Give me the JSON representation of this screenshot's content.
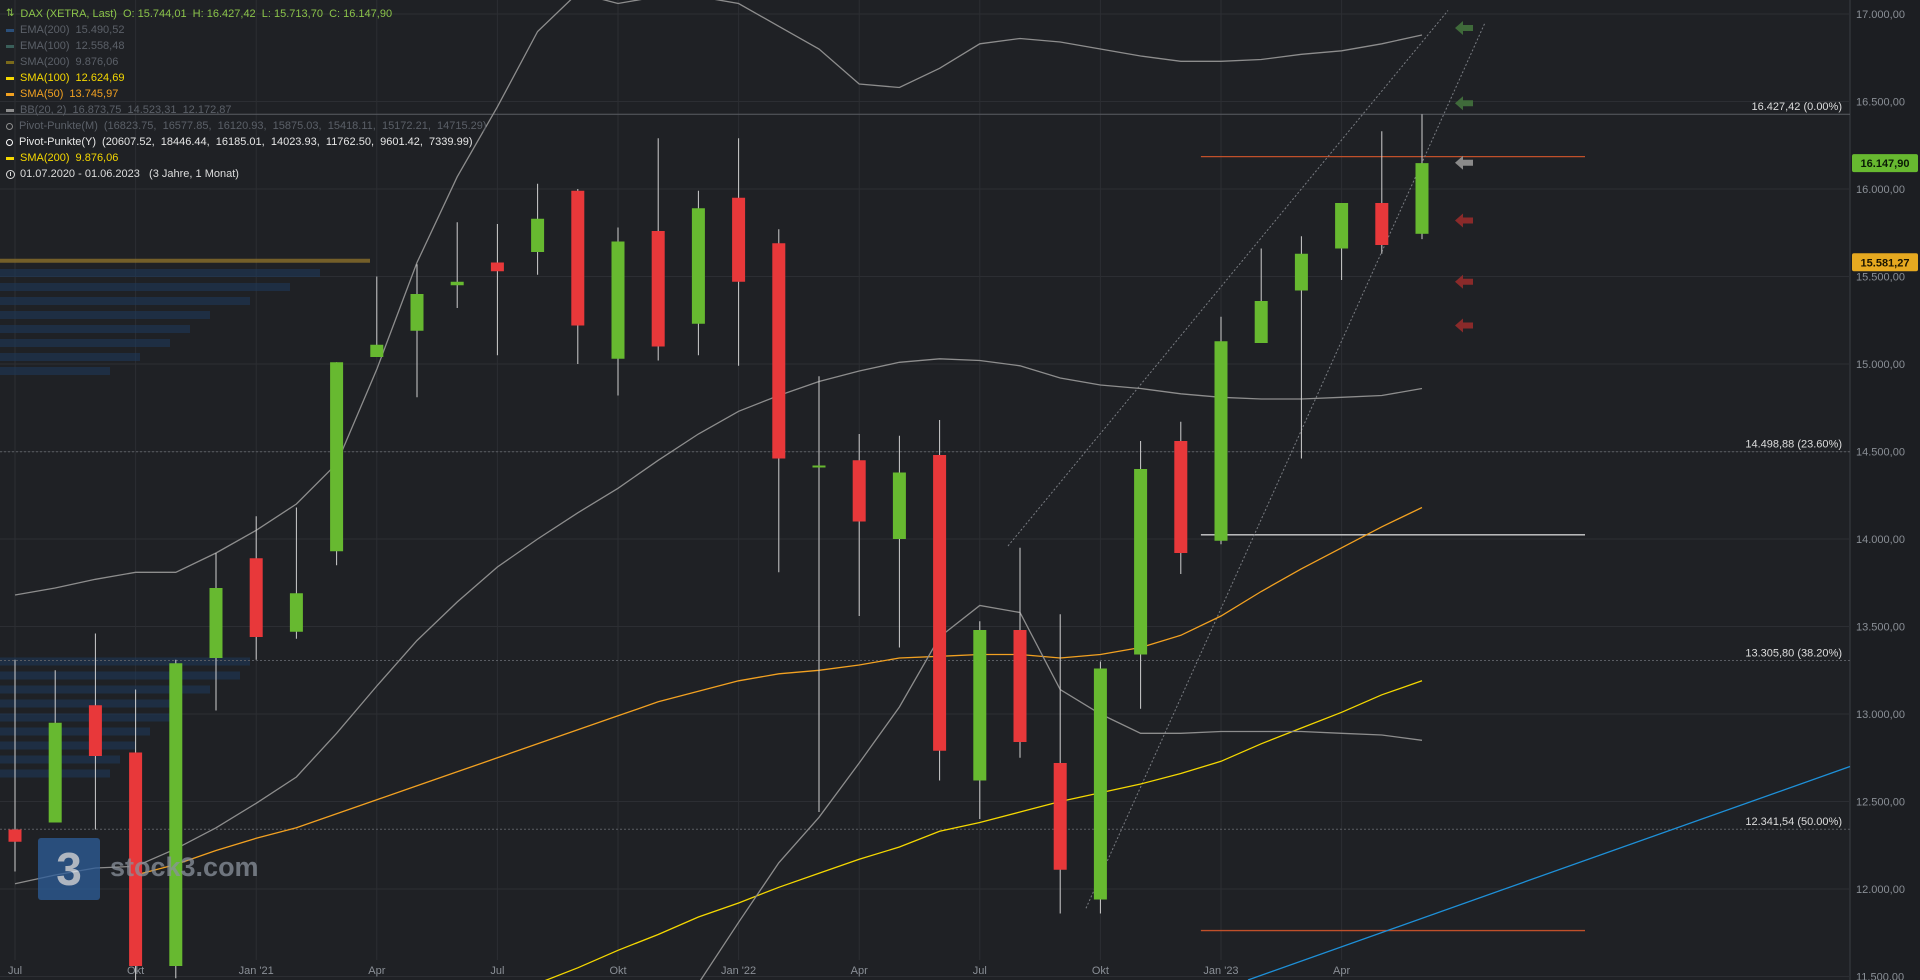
{
  "header": {
    "title": "DAX (XETRA, Last)",
    "ohlc": "O: 15.744,01  H: 16.427,42  L: 15.713,70  C: 16.147,90"
  },
  "legend": [
    {
      "name": "EMA(200)",
      "value": "15.490,52",
      "color": "#2b4f7a",
      "dim": true
    },
    {
      "name": "EMA(100)",
      "value": "12.558,48",
      "color": "#3a5f5a",
      "dim": true
    },
    {
      "name": "SMA(200)",
      "value": "9.876,06",
      "color": "#7a6a1a",
      "dim": true
    },
    {
      "name": "SMA(100)",
      "value": "12.624,69",
      "color": "#f5d800",
      "dim": false
    },
    {
      "name": "SMA(50)",
      "value": "13.745,97",
      "color": "#f2a121",
      "dim": false
    },
    {
      "name": "BB(20, 2)",
      "value": "16.873,75  14.523,31  12.172,87",
      "color": "#8d8d8d",
      "dim": true
    },
    {
      "name": "Pivot-Punkte(M)",
      "value": "(16823.75,  16577.85,  16120.93,  15875.03,  15418.11,  15172.21,  14715.29)",
      "color": "#8d8d8d",
      "dim": true,
      "circle": true
    },
    {
      "name": "Pivot-Punkte(Y)",
      "value": "(20607.52,  18446.44,  16185.01,  14023.93,  11762.50,  9601.42,  7339.99)",
      "color": "#ffffff",
      "dim": false,
      "circle": true
    },
    {
      "name": "SMA(200)",
      "value": "9.876,06",
      "color": "#f5d800",
      "dim": false
    }
  ],
  "range_text": "01.07.2020 - 01.06.2023   (3 Jahre, 1 Monat)",
  "logo": {
    "glyph": "3",
    "text": "stock3.com"
  },
  "colors": {
    "background": "#1f2125",
    "up": "#67b930",
    "down": "#e8383a",
    "grid": "#2c2e33",
    "axis_text": "#8a8f96"
  },
  "chart_data": {
    "type": "candlestick",
    "x_tick_labels": [
      "Jul",
      "Okt",
      "Jan '21",
      "Apr",
      "Jul",
      "Okt",
      "Jan '22",
      "Apr",
      "Jul",
      "Okt",
      "Jan '23",
      "Apr"
    ],
    "y_tick_labels": [
      "11.500,00",
      "12.000,00",
      "12.500,00",
      "13.000,00",
      "13.500,00",
      "14.000,00",
      "14.500,00",
      "15.000,00",
      "15.500,00",
      "16.000,00",
      "16.500,00",
      "17.000,00"
    ],
    "ylim": [
      11480,
      17080
    ],
    "candles": [
      {
        "date": "2020-07",
        "o": 12340,
        "h": 13310,
        "l": 12100,
        "c": 12270
      },
      {
        "date": "2020-08",
        "o": 12380,
        "h": 13250,
        "l": 12380,
        "c": 12950
      },
      {
        "date": "2020-09",
        "o": 13050,
        "h": 13460,
        "l": 12340,
        "c": 12760
      },
      {
        "date": "2020-10",
        "o": 12780,
        "h": 13140,
        "l": 11450,
        "c": 11560
      },
      {
        "date": "2020-11",
        "o": 11560,
        "h": 13310,
        "l": 11490,
        "c": 13290
      },
      {
        "date": "2020-12",
        "o": 13320,
        "h": 13920,
        "l": 13020,
        "c": 13720
      },
      {
        "date": "2021-01",
        "o": 13890,
        "h": 14130,
        "l": 13310,
        "c": 13440
      },
      {
        "date": "2021-02",
        "o": 13470,
        "h": 14180,
        "l": 13430,
        "c": 13690
      },
      {
        "date": "2021-03",
        "o": 13930,
        "h": 15010,
        "l": 13850,
        "c": 15010
      },
      {
        "date": "2021-04",
        "o": 15040,
        "h": 15500,
        "l": 15040,
        "c": 15110
      },
      {
        "date": "2021-05",
        "o": 15190,
        "h": 15570,
        "l": 14810,
        "c": 15400
      },
      {
        "date": "2021-06",
        "o": 15450,
        "h": 15810,
        "l": 15320,
        "c": 15470
      },
      {
        "date": "2021-07",
        "o": 15580,
        "h": 15800,
        "l": 15050,
        "c": 15530
      },
      {
        "date": "2021-08",
        "o": 15640,
        "h": 16030,
        "l": 15510,
        "c": 15830
      },
      {
        "date": "2021-09",
        "o": 15990,
        "h": 16000,
        "l": 15000,
        "c": 15220
      },
      {
        "date": "2021-10",
        "o": 15030,
        "h": 15780,
        "l": 14820,
        "c": 15700
      },
      {
        "date": "2021-11",
        "o": 15760,
        "h": 16290,
        "l": 15020,
        "c": 15100
      },
      {
        "date": "2021-12",
        "o": 15230,
        "h": 15990,
        "l": 15050,
        "c": 15890
      },
      {
        "date": "2022-01",
        "o": 15950,
        "h": 16290,
        "l": 14990,
        "c": 15470
      },
      {
        "date": "2022-02",
        "o": 15690,
        "h": 15770,
        "l": 13810,
        "c": 14460
      },
      {
        "date": "2022-03",
        "o": 14410,
        "h": 14930,
        "l": 12440,
        "c": 14420
      },
      {
        "date": "2022-04",
        "o": 14450,
        "h": 14600,
        "l": 13560,
        "c": 14100
      },
      {
        "date": "2022-05",
        "o": 14000,
        "h": 14590,
        "l": 13380,
        "c": 14380
      },
      {
        "date": "2022-06",
        "o": 14480,
        "h": 14680,
        "l": 12620,
        "c": 12790
      },
      {
        "date": "2022-07",
        "o": 12620,
        "h": 13530,
        "l": 12400,
        "c": 13480
      },
      {
        "date": "2022-08",
        "o": 13480,
        "h": 13950,
        "l": 12750,
        "c": 12840
      },
      {
        "date": "2022-09",
        "o": 12720,
        "h": 13570,
        "l": 11860,
        "c": 12110
      },
      {
        "date": "2022-10",
        "o": 11940,
        "h": 13300,
        "l": 11860,
        "c": 13260
      },
      {
        "date": "2022-11",
        "o": 13340,
        "h": 14560,
        "l": 13030,
        "c": 14400
      },
      {
        "date": "2022-12",
        "o": 14560,
        "h": 14670,
        "l": 13800,
        "c": 13920
      },
      {
        "date": "2023-01",
        "o": 13990,
        "h": 15270,
        "l": 13970,
        "c": 15130
      },
      {
        "date": "2023-02",
        "o": 15120,
        "h": 15660,
        "l": 15120,
        "c": 15360
      },
      {
        "date": "2023-03",
        "o": 15420,
        "h": 15730,
        "l": 14460,
        "c": 15630
      },
      {
        "date": "2023-04",
        "o": 15660,
        "h": 15920,
        "l": 15480,
        "c": 15920
      },
      {
        "date": "2023-05",
        "o": 15920,
        "h": 16330,
        "l": 15630,
        "c": 15680
      },
      {
        "date": "2023-06",
        "o": 15744.01,
        "h": 16427.42,
        "l": 15713.7,
        "c": 16147.9
      }
    ],
    "indicators": [
      {
        "name": "SMA(50)",
        "color": "#f2a121",
        "values": [
          null,
          null,
          null,
          12080,
          12140,
          12220,
          12290,
          12350,
          12430,
          12510,
          12590,
          12670,
          12750,
          12830,
          12910,
          12990,
          13070,
          13130,
          13190,
          13230,
          13250,
          13280,
          13320,
          13330,
          13340,
          13340,
          13320,
          13340,
          13380,
          13450,
          13560,
          13700,
          13830,
          13950,
          14070,
          14180
        ]
      },
      {
        "name": "SMA(100)",
        "color": "#f5d800",
        "values": [
          null,
          null,
          null,
          null,
          null,
          null,
          null,
          null,
          null,
          null,
          null,
          null,
          null,
          11460,
          11550,
          11650,
          11740,
          11840,
          11920,
          12010,
          12090,
          12170,
          12240,
          12330,
          12380,
          12440,
          12500,
          12550,
          12600,
          12660,
          12730,
          12830,
          12920,
          13010,
          13110,
          13190
        ]
      },
      {
        "name": "BB upper",
        "color": "#8d8d8d",
        "values": [
          13680,
          13720,
          13770,
          13810,
          13810,
          13920,
          14050,
          14200,
          14430,
          14970,
          15580,
          16070,
          16470,
          16900,
          17120,
          17060,
          17100,
          17100,
          17060,
          16930,
          16800,
          16600,
          16580,
          16690,
          16830,
          16860,
          16840,
          16800,
          16760,
          16730,
          16730,
          16740,
          16770,
          16790,
          16830,
          16880
        ]
      },
      {
        "name": "BB middle",
        "color": "#8d8d8d",
        "values": [
          12030,
          12080,
          12120,
          12130,
          12230,
          12350,
          12490,
          12640,
          12890,
          13160,
          13420,
          13640,
          13840,
          14000,
          14150,
          14290,
          14450,
          14600,
          14730,
          14820,
          14900,
          14960,
          15010,
          15030,
          15020,
          14990,
          14920,
          14880,
          14860,
          14830,
          14810,
          14800,
          14800,
          14810,
          14820,
          14860
        ]
      },
      {
        "name": "BB lower",
        "color": "#8d8d8d",
        "values": [
          null,
          null,
          null,
          null,
          null,
          null,
          null,
          null,
          null,
          null,
          null,
          null,
          null,
          null,
          null,
          null,
          null,
          11460,
          11810,
          12150,
          12410,
          12720,
          13040,
          13440,
          13620,
          13580,
          13140,
          13000,
          12890,
          12890,
          12900,
          12900,
          12900,
          12890,
          12880,
          12850
        ]
      }
    ],
    "fib_levels": [
      {
        "label": "16.427,42 (0.00%)",
        "value": 16427.42
      },
      {
        "label": "14.498,88 (23.60%)",
        "value": 14498.88
      },
      {
        "label": "13.305,80 (38.20%)",
        "value": 13305.8
      },
      {
        "label": "12.341,54 (50.00%)",
        "value": 12341.54
      }
    ],
    "pivot_lines": [
      {
        "value": 16185.01,
        "color": "#c0502a"
      },
      {
        "value": 14023.93,
        "color": "#cfcfcf"
      },
      {
        "value": 11762.5,
        "color": "#c0502a"
      }
    ],
    "price_labels": [
      {
        "label": "16.147,90",
        "value": 16147.9,
        "bg": "#67b930",
        "fg": "#0a1a05"
      },
      {
        "label": "15.581,27",
        "value": 15581.27,
        "bg": "#e6a920",
        "fg": "#1a1400"
      }
    ]
  }
}
